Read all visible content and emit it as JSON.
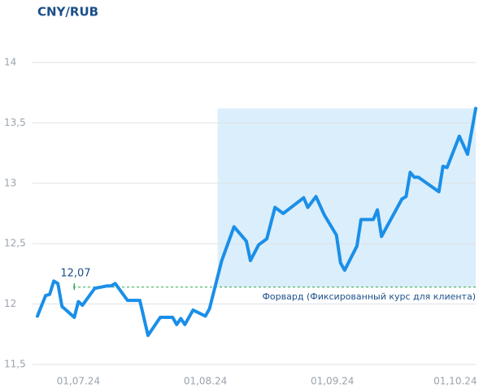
{
  "chart_data": {
    "type": "line",
    "title": "CNY/RUB",
    "x": [
      "2024-06-21",
      "2024-06-23",
      "2024-06-24",
      "2024-06-25",
      "2024-06-26",
      "2024-06-27",
      "2024-06-30",
      "2024-07-01",
      "2024-07-02",
      "2024-07-05",
      "2024-07-08",
      "2024-07-09",
      "2024-07-10",
      "2024-07-13",
      "2024-07-16",
      "2024-07-18",
      "2024-07-21",
      "2024-07-24",
      "2024-07-25",
      "2024-07-26",
      "2024-07-27",
      "2024-07-29",
      "2024-08-01",
      "2024-08-02",
      "2024-08-05",
      "2024-08-08",
      "2024-08-11",
      "2024-08-12",
      "2024-08-14",
      "2024-08-16",
      "2024-08-18",
      "2024-08-20",
      "2024-08-25",
      "2024-08-26",
      "2024-08-28",
      "2024-08-30",
      "2024-09-02",
      "2024-09-03",
      "2024-09-04",
      "2024-09-07",
      "2024-09-08",
      "2024-09-11",
      "2024-09-12",
      "2024-09-13",
      "2024-09-18",
      "2024-09-19",
      "2024-09-20",
      "2024-09-21",
      "2024-09-22",
      "2024-09-27",
      "2024-09-28",
      "2024-09-29",
      "2024-10-02",
      "2024-10-04",
      "2024-10-06"
    ],
    "series": [
      {
        "name": "CNY/RUB",
        "color": "#1a8fe8",
        "values": [
          11.9,
          12.07,
          12.08,
          12.19,
          12.17,
          11.98,
          11.89,
          12.02,
          11.99,
          12.13,
          12.15,
          12.15,
          12.17,
          12.03,
          12.03,
          11.74,
          11.89,
          11.89,
          11.83,
          11.88,
          11.83,
          11.95,
          11.9,
          11.96,
          12.36,
          12.64,
          12.52,
          12.36,
          12.49,
          12.54,
          12.8,
          12.75,
          12.88,
          12.8,
          12.89,
          12.74,
          12.57,
          12.34,
          12.28,
          12.48,
          12.7,
          12.7,
          12.78,
          12.56,
          12.87,
          12.89,
          13.09,
          13.05,
          13.05,
          12.93,
          13.14,
          13.13,
          13.39,
          13.24,
          13.62
        ]
      }
    ],
    "xlim": [
      "2024-06-21",
      "2024-10-06"
    ],
    "xticks": [
      {
        "value": "2024-07-01",
        "label": "01,07.24"
      },
      {
        "value": "2024-08-01",
        "label": "01,08.24"
      },
      {
        "value": "2024-09-01",
        "label": "01,09.24"
      },
      {
        "value": "2024-10-01",
        "label": "01,10.24"
      }
    ],
    "ylim": [
      11.5,
      14
    ],
    "yticks": [
      {
        "value": 11.5,
        "label": "11,5"
      },
      12,
      {
        "value": 12.5,
        "label": "12,5"
      },
      13,
      {
        "value": 13.5,
        "label": "13,5"
      },
      14
    ],
    "grid": true,
    "forward": {
      "value": 12.14,
      "label": "Форвард (Фиксированный курс для клиента)",
      "color": "#2aa84a"
    },
    "annotation": {
      "x": "2024-06-30",
      "value": 12.07,
      "label": "12,07"
    },
    "highlight": {
      "x_start": "2024-08-04",
      "color": "#dbeefb"
    }
  }
}
